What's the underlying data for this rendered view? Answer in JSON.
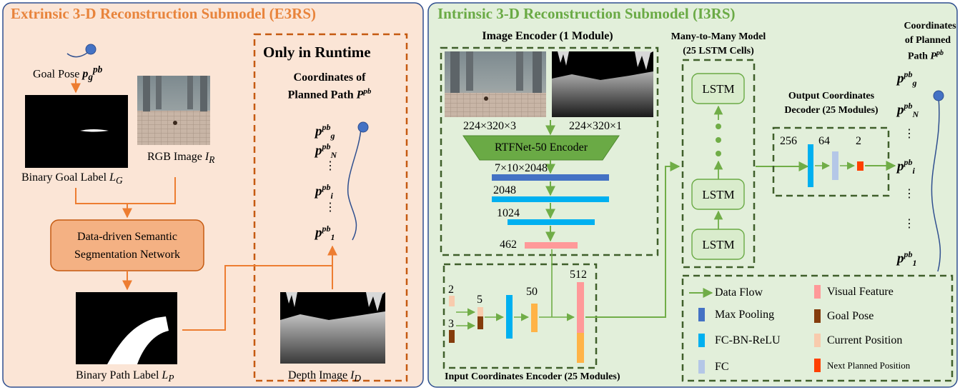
{
  "colors": {
    "e3rs_bg": "#fbe5d6",
    "e3rs_title": "#e8843c",
    "i3rs_bg": "#e2efda",
    "i3rs_title": "#6aaa45",
    "panel_border": "#2f4f8f",
    "dash_orange": "#c55a11",
    "dash_green": "#3f5f2a",
    "flow_orange": "#ed7d31",
    "flow_green": "#70ad47",
    "seg_net_fill": "#f4b183",
    "lstm_fill": "#d9eccc",
    "encoder_fill": "#6aaa45",
    "max_pooling": "#4472c4",
    "fc_bn_relu": "#00b0f0",
    "fc": "#b4c7e7",
    "visual_feature": "#ff9999",
    "goal_pose": "#843c0c",
    "current_position": "#f8cbad",
    "next_planned_position": "#ff4000",
    "path_line": "#2f4f8f",
    "path_dot": "#4472c4",
    "input_bar_orange": "#ffb347"
  },
  "e3rs": {
    "title": "Extrinsic 3-D Reconstruction Submodel (E3RS)",
    "goal_pose_label": "Goal Pose",
    "binary_goal_label": "Binary Goal Label",
    "binary_goal_symbol": "L",
    "binary_goal_sub": "G",
    "rgb_label": "RGB Image",
    "rgb_symbol": "I",
    "rgb_sub": "R",
    "seg_network_line1": "Data-driven Semantic",
    "seg_network_line2": "Segmentation Network",
    "binary_path_label": "Binary Path Label",
    "binary_path_symbol": "L",
    "binary_path_sub": "P",
    "runtime_title": "Only in Runtime",
    "coords_line1": "Coordinates of",
    "coords_line2": "Planned Path",
    "depth_label": "Depth Image",
    "depth_symbol": "I",
    "depth_sub": "D"
  },
  "i3rs": {
    "title": "Intrinsic 3-D Reconstruction Submodel (I3RS)",
    "image_encoder_title": "Image Encoder (1 Module)",
    "rgb_dims": "224×320×3",
    "depth_dims": "224×320×1",
    "rtfnet_label": "RTFNet-50 Encoder",
    "feature_dims": [
      "7×10×2048",
      "2048",
      "1024",
      "462"
    ],
    "many_to_many_line1": "Many-to-Many Model",
    "many_to_many_line2": "(25 LSTM Cells)",
    "lstm_label": "LSTM",
    "output_decoder_line1": "Output Coordinates",
    "output_decoder_line2": "Decoder (25 Modules)",
    "decoder_dims": [
      "256",
      "64",
      "2"
    ],
    "input_encoder_title": "Input Coordinates Encoder (25 Modules)",
    "input_dims": [
      "2",
      "3",
      "5",
      "50",
      "512"
    ],
    "coords_line1": "Coordinates",
    "coords_line2": "of Planned",
    "coords_line3": "Path"
  },
  "path_symbols": {
    "base": "p",
    "sup": "pb",
    "path_symbol": "P",
    "g": "g",
    "n": "N",
    "i": "i",
    "one": "1",
    "ellipsis": "⋮"
  },
  "legend": [
    {
      "label": "Data Flow",
      "icon": "arrow-icon"
    },
    {
      "label": "Max Pooling",
      "color": "#4472c4"
    },
    {
      "label": "FC-BN-ReLU",
      "color": "#00b0f0"
    },
    {
      "label": "FC",
      "color": "#b4c7e7"
    },
    {
      "label": "Visual Feature",
      "color": "#ff9999"
    },
    {
      "label": "Goal Pose",
      "color": "#843c0c"
    },
    {
      "label": "Current Position",
      "color": "#f8cbad"
    },
    {
      "label": "Next Planned Position",
      "color": "#ff4000"
    }
  ]
}
